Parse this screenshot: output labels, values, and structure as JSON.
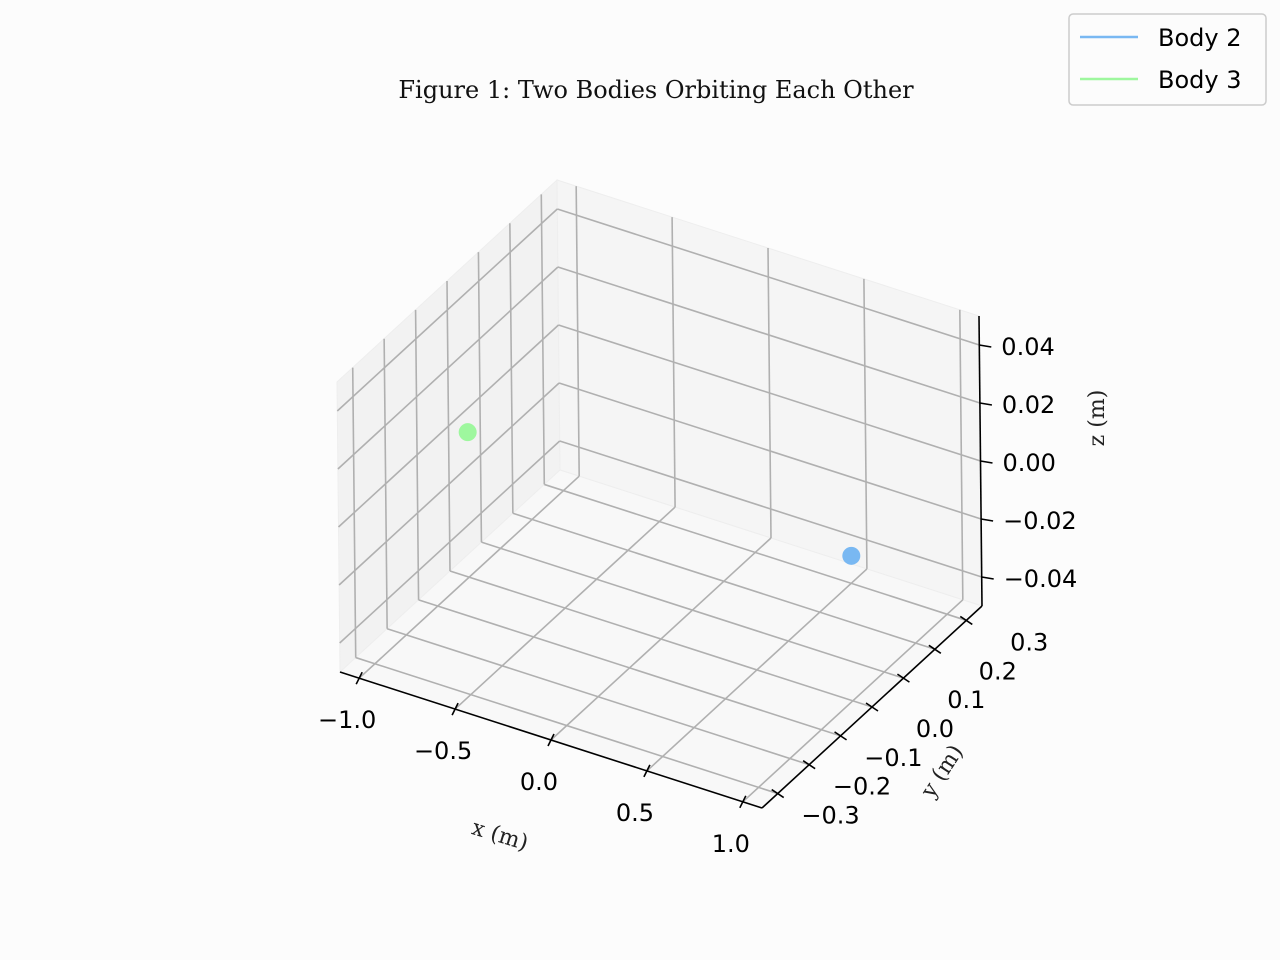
{
  "chart_data": {
    "type": "scatter",
    "title": "Figure 1: Two Bodies Orbiting Each Other",
    "xlabel": "x (m)",
    "ylabel": "y (m)",
    "zlabel": "z (m)",
    "xlim": [
      -1.1,
      1.1
    ],
    "ylim": [
      -0.35,
      0.35
    ],
    "zlim": [
      -0.05,
      0.05
    ],
    "x_ticks": [
      -1.0,
      -0.5,
      0.0,
      0.5,
      1.0
    ],
    "x_tick_labels": [
      "−1.0",
      "−0.5",
      "0.0",
      "0.5",
      "1.0"
    ],
    "y_ticks": [
      -0.3,
      -0.2,
      -0.1,
      0.0,
      0.1,
      0.2,
      0.3
    ],
    "y_tick_labels": [
      "−0.3",
      "−0.2",
      "−0.1",
      "0.0",
      "0.1",
      "0.2",
      "0.3"
    ],
    "z_ticks": [
      -0.04,
      -0.02,
      0.0,
      0.02,
      0.04
    ],
    "z_tick_labels": [
      "−0.04",
      "−0.02",
      "0.00",
      "0.02",
      "0.04"
    ],
    "grid": true,
    "legend_position": "top-right",
    "series": [
      {
        "name": "Body 2",
        "color": "#79b8f2",
        "points": [
          {
            "x": 1.0,
            "y": 0.0,
            "z": 0.0
          }
        ]
      },
      {
        "name": "Body 3",
        "color": "#9ef79e",
        "points": [
          {
            "x": -1.0,
            "y": 0.0,
            "z": 0.0
          }
        ]
      }
    ]
  }
}
